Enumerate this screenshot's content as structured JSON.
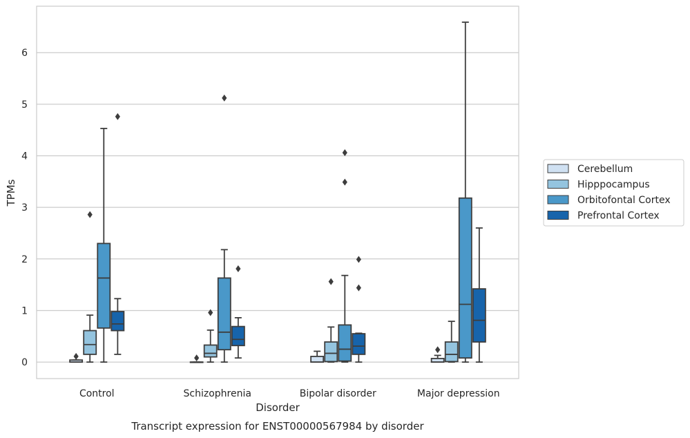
{
  "chart_data": {
    "type": "boxplot",
    "xlabel": "Disorder",
    "ylabel": "TPMs",
    "caption": "Transcript expression for ENST00000567984 by disorder",
    "ylim": [
      -0.32,
      6.9
    ],
    "yticks": [
      0,
      1,
      2,
      3,
      4,
      5,
      6
    ],
    "grid": "horizontal",
    "legend_position": "right",
    "categories": [
      "Control",
      "Schizophrenia",
      "Bipolar disorder",
      "Major depression"
    ],
    "series": [
      {
        "name": "Cerebellum",
        "color": "#d0e1f2",
        "boxes": [
          {
            "whisker_low": 0.0,
            "q1": 0.0,
            "median": 0.0,
            "q3": 0.04,
            "whisker_high": 0.04,
            "outliers": [
              0.11
            ]
          },
          {
            "whisker_low": 0.0,
            "q1": 0.0,
            "median": 0.0,
            "q3": 0.0,
            "whisker_high": 0.0,
            "outliers": [
              0.08
            ]
          },
          {
            "whisker_low": 0.0,
            "q1": 0.0,
            "median": 0.0,
            "q3": 0.11,
            "whisker_high": 0.21,
            "outliers": []
          },
          {
            "whisker_low": 0.0,
            "q1": 0.0,
            "median": 0.0,
            "q3": 0.07,
            "whisker_high": 0.13,
            "outliers": [
              0.24
            ]
          }
        ]
      },
      {
        "name": "Hipppocampus",
        "color": "#94c4df",
        "boxes": [
          {
            "whisker_low": 0.0,
            "q1": 0.15,
            "median": 0.34,
            "q3": 0.61,
            "whisker_high": 0.91,
            "outliers": [
              2.86
            ]
          },
          {
            "whisker_low": 0.0,
            "q1": 0.1,
            "median": 0.17,
            "q3": 0.33,
            "whisker_high": 0.62,
            "outliers": [
              0.96
            ]
          },
          {
            "whisker_low": 0.0,
            "q1": 0.01,
            "median": 0.17,
            "q3": 0.39,
            "whisker_high": 0.68,
            "outliers": [
              1.56
            ]
          },
          {
            "whisker_low": 0.0,
            "q1": 0.01,
            "median": 0.15,
            "q3": 0.39,
            "whisker_high": 0.79,
            "outliers": []
          }
        ]
      },
      {
        "name": "Orbitofontal Cortex",
        "color": "#4a98c9",
        "boxes": [
          {
            "whisker_low": 0.0,
            "q1": 0.66,
            "median": 1.63,
            "q3": 2.3,
            "whisker_high": 4.53,
            "outliers": []
          },
          {
            "whisker_low": 0.0,
            "q1": 0.24,
            "median": 0.58,
            "q3": 1.63,
            "whisker_high": 2.18,
            "outliers": [
              5.12
            ]
          },
          {
            "whisker_low": 0.0,
            "q1": 0.02,
            "median": 0.25,
            "q3": 0.72,
            "whisker_high": 1.68,
            "outliers": [
              3.49,
              4.06
            ]
          },
          {
            "whisker_low": 0.0,
            "q1": 0.08,
            "median": 1.12,
            "q3": 3.18,
            "whisker_high": 6.59,
            "outliers": []
          }
        ]
      },
      {
        "name": "Prefrontal Cortex",
        "color": "#1764ab",
        "boxes": [
          {
            "whisker_low": 0.15,
            "q1": 0.61,
            "median": 0.74,
            "q3": 0.98,
            "whisker_high": 1.23,
            "outliers": [
              4.76
            ]
          },
          {
            "whisker_low": 0.08,
            "q1": 0.32,
            "median": 0.44,
            "q3": 0.69,
            "whisker_high": 0.86,
            "outliers": [
              1.81
            ]
          },
          {
            "whisker_low": 0.0,
            "q1": 0.15,
            "median": 0.31,
            "q3": 0.55,
            "whisker_high": 0.56,
            "outliers": [
              1.44,
              1.99
            ]
          },
          {
            "whisker_low": 0.0,
            "q1": 0.39,
            "median": 0.81,
            "q3": 1.42,
            "whisker_high": 2.6,
            "outliers": []
          }
        ]
      }
    ]
  }
}
